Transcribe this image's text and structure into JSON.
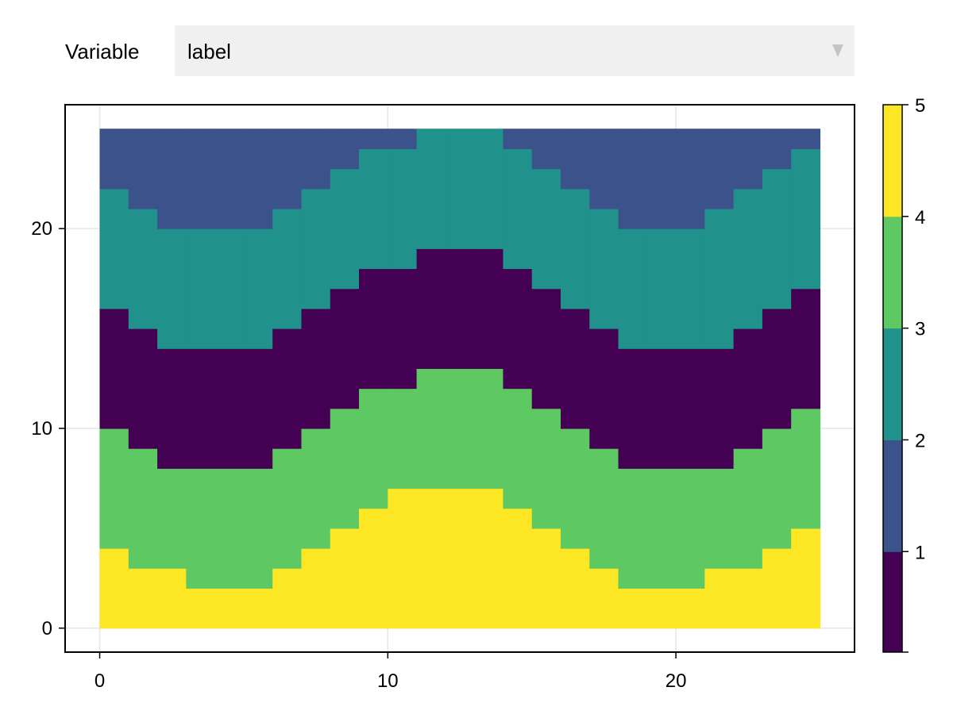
{
  "controls": {
    "variable_label": "Variable",
    "variable_selected": "label"
  },
  "icons": {
    "dropdown": "triangle-down-icon"
  },
  "chart_data": {
    "type": "heatmap",
    "title": "",
    "xlabel": "",
    "ylabel": "",
    "xlim": [
      -1.2,
      26.2
    ],
    "ylim": [
      -1.2,
      26.2
    ],
    "x_ticks": [
      0,
      10,
      20
    ],
    "y_ticks": [
      0,
      10,
      20
    ],
    "grid": true,
    "legend": "colorbar-right",
    "x": [
      0,
      25
    ],
    "y": [
      0,
      25
    ],
    "description_of_cells": "label value per column; boundaries listed as column-wise row limits",
    "column_boundaries": {
      "b45": [
        4,
        3,
        3,
        2,
        2,
        2,
        3,
        4,
        5,
        6,
        7,
        7,
        7,
        7,
        6,
        5,
        4,
        3,
        2,
        2,
        2,
        3,
        3,
        4,
        5
      ],
      "b34": [
        10,
        9,
        8,
        8,
        8,
        8,
        9,
        10,
        11,
        12,
        12,
        13,
        13,
        13,
        12,
        11,
        10,
        9,
        8,
        8,
        8,
        8,
        9,
        10,
        11
      ],
      "b12": [
        16,
        15,
        14,
        14,
        14,
        14,
        15,
        16,
        17,
        18,
        18,
        19,
        19,
        19,
        18,
        17,
        16,
        15,
        14,
        14,
        14,
        14,
        15,
        16,
        17
      ],
      "b23": [
        22,
        21,
        20,
        20,
        20,
        20,
        21,
        22,
        23,
        24,
        24,
        25,
        25,
        25,
        24,
        23,
        22,
        21,
        20,
        20,
        20,
        21,
        22,
        23,
        24
      ]
    },
    "levels": [
      1,
      2,
      3,
      4,
      5
    ],
    "colorbar_ticks": [
      1,
      2,
      3,
      4,
      5
    ],
    "colorbar_range": [
      0.1,
      5
    ],
    "colorbar_bins": [
      {
        "from": 0.1,
        "to": 1,
        "color": "#440154"
      },
      {
        "from": 1,
        "to": 2,
        "color": "#3b528b"
      },
      {
        "from": 2,
        "to": 3,
        "color": "#21918c"
      },
      {
        "from": 3,
        "to": 4,
        "color": "#5ec962"
      },
      {
        "from": 4,
        "to": 5,
        "color": "#fde725"
      }
    ],
    "colors": {
      "1": "#440154",
      "2": "#3b528b",
      "3": "#21918c",
      "4": "#5ec962",
      "5": "#fde725"
    }
  }
}
